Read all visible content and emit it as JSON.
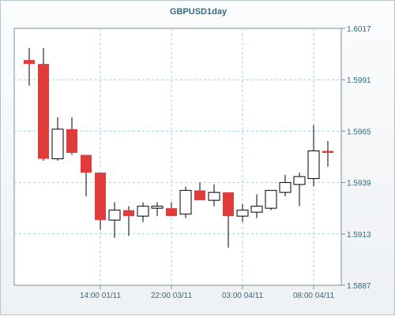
{
  "chart_data": {
    "type": "candlestick",
    "title": "GBPUSD1day",
    "y_ticks": [
      1.5887,
      1.5913,
      1.5939,
      1.5965,
      1.5991,
      1.6017
    ],
    "y_tick_labels": [
      "1.5887",
      "1.5913",
      "1.5939",
      "1.5965",
      "1.5991",
      "1.6017"
    ],
    "ylim": [
      1.5887,
      1.6017
    ],
    "x_tick_labels": [
      "14:00 01/11",
      "22:00 03/11",
      "03:00 04/11",
      "08:00 04/11"
    ],
    "x_tick_candle_index": [
      5,
      10,
      15,
      20
    ],
    "grid": true,
    "colors": {
      "bull_fill": "#ffffff",
      "bear_fill": "#e03c3c",
      "wick": "#000000",
      "grid": "#9fd3d6",
      "axis_text": "#2f6b7e"
    },
    "candles": [
      {
        "open": 1.6001,
        "high": 1.6007,
        "low": 1.5988,
        "close": 1.5999
      },
      {
        "open": 1.5999,
        "high": 1.6007,
        "low": 1.595,
        "close": 1.5951
      },
      {
        "open": 1.5951,
        "high": 1.5972,
        "low": 1.595,
        "close": 1.5966
      },
      {
        "open": 1.5966,
        "high": 1.5972,
        "low": 1.5953,
        "close": 1.5954
      },
      {
        "open": 1.5953,
        "high": 1.5953,
        "low": 1.5932,
        "close": 1.5944
      },
      {
        "open": 1.5944,
        "high": 1.5944,
        "low": 1.5915,
        "close": 1.592
      },
      {
        "open": 1.592,
        "high": 1.5929,
        "low": 1.5911,
        "close": 1.5925
      },
      {
        "open": 1.5925,
        "high": 1.5927,
        "low": 1.5912,
        "close": 1.5922
      },
      {
        "open": 1.5922,
        "high": 1.5929,
        "low": 1.5919,
        "close": 1.5927
      },
      {
        "open": 1.5926,
        "high": 1.5929,
        "low": 1.5922,
        "close": 1.5927
      },
      {
        "open": 1.5926,
        "high": 1.5929,
        "low": 1.5922,
        "close": 1.5922
      },
      {
        "open": 1.5923,
        "high": 1.5937,
        "low": 1.5921,
        "close": 1.5935
      },
      {
        "open": 1.5935,
        "high": 1.5939,
        "low": 1.5931,
        "close": 1.593
      },
      {
        "open": 1.593,
        "high": 1.5938,
        "low": 1.5927,
        "close": 1.5934
      },
      {
        "open": 1.5934,
        "high": 1.5934,
        "low": 1.5906,
        "close": 1.5922
      },
      {
        "open": 1.5922,
        "high": 1.5928,
        "low": 1.5919,
        "close": 1.5925
      },
      {
        "open": 1.5924,
        "high": 1.5933,
        "low": 1.5921,
        "close": 1.5927
      },
      {
        "open": 1.5926,
        "high": 1.5935,
        "low": 1.5925,
        "close": 1.5935
      },
      {
        "open": 1.5934,
        "high": 1.5943,
        "low": 1.5932,
        "close": 1.5939
      },
      {
        "open": 1.5938,
        "high": 1.5944,
        "low": 1.5927,
        "close": 1.5942
      },
      {
        "open": 1.5941,
        "high": 1.5968,
        "low": 1.5937,
        "close": 1.5955
      },
      {
        "open": 1.5955,
        "high": 1.596,
        "low": 1.5947,
        "close": 1.5954
      }
    ]
  }
}
